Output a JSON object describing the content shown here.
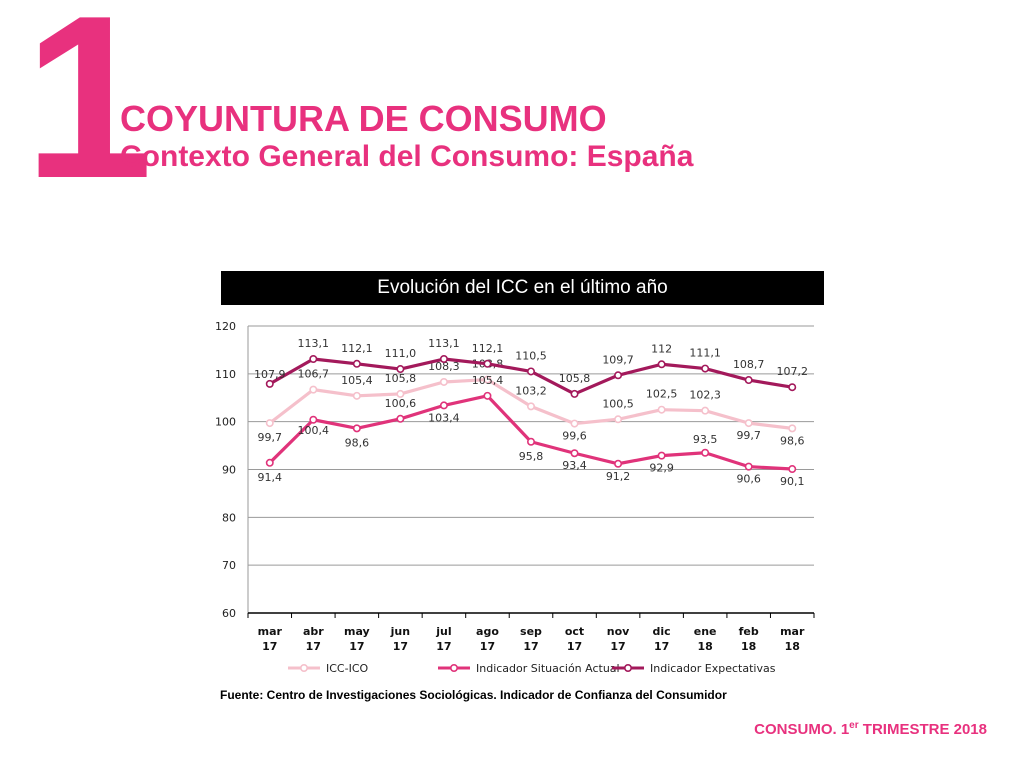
{
  "page": {
    "section_number": "1",
    "title": "COYUNTURA DE CONSUMO",
    "subtitle": "Contexto General del Consumo: España",
    "chart_header": "Evolución del ICC en el último año",
    "source": "Fuente: Centro de Investigaciones Sociológicas. Indicador de Confianza del Consumidor",
    "footer_main": "CONSUMO. 1",
    "footer_sup": "er",
    "footer_end": " TRIMESTRE 2018"
  },
  "chart_data": {
    "type": "line",
    "categories": [
      [
        "mar",
        "17"
      ],
      [
        "abr",
        "17"
      ],
      [
        "may",
        "17"
      ],
      [
        "jun",
        "17"
      ],
      [
        "jul",
        "17"
      ],
      [
        "ago",
        "17"
      ],
      [
        "sep",
        "17"
      ],
      [
        "oct",
        "17"
      ],
      [
        "nov",
        "17"
      ],
      [
        "dic",
        "17"
      ],
      [
        "ene",
        "18"
      ],
      [
        "feb",
        "18"
      ],
      [
        "mar",
        "18"
      ]
    ],
    "ylim": [
      60,
      120
    ],
    "yticks": [
      60,
      70,
      80,
      90,
      100,
      110,
      120
    ],
    "grid": true,
    "legend_position": "bottom",
    "series": [
      {
        "name": "ICC-ICO",
        "color": "#f5c0cb",
        "values": [
          99.7,
          106.7,
          105.4,
          105.8,
          108.3,
          108.8,
          103.2,
          99.6,
          100.5,
          102.5,
          102.3,
          99.7,
          98.6
        ],
        "labels": [
          "99,7",
          "106,7",
          "105,4",
          "105,8",
          "108,3",
          "108,8",
          "103,2",
          "99,6",
          "100,5",
          "102,5",
          "102,3",
          "99,7",
          "98,6"
        ]
      },
      {
        "name": "Indicador  Situación Actual",
        "color": "#e0337a",
        "values": [
          91.4,
          100.4,
          98.6,
          100.6,
          103.4,
          105.4,
          95.8,
          93.4,
          91.2,
          92.9,
          93.5,
          90.6,
          90.1
        ],
        "labels": [
          "91,4",
          "100,4",
          "98,6",
          "100,6",
          "103,4",
          "105,4",
          "95,8",
          "93,4",
          "91,2",
          "92,9",
          "93,5",
          "90,6",
          "90,1"
        ]
      },
      {
        "name": "Indicador  Expectativas",
        "color": "#a3195b",
        "values": [
          107.9,
          113.1,
          112.1,
          111.0,
          113.1,
          112.1,
          110.5,
          105.8,
          109.7,
          112.0,
          111.1,
          108.7,
          107.2
        ],
        "labels": [
          "107,9",
          "113,1",
          "112,1",
          "111,0",
          "113,1",
          "112,1",
          "110,5",
          "105,8",
          "109,7",
          "112",
          "111,1",
          "108,7",
          "107,2"
        ]
      }
    ]
  }
}
